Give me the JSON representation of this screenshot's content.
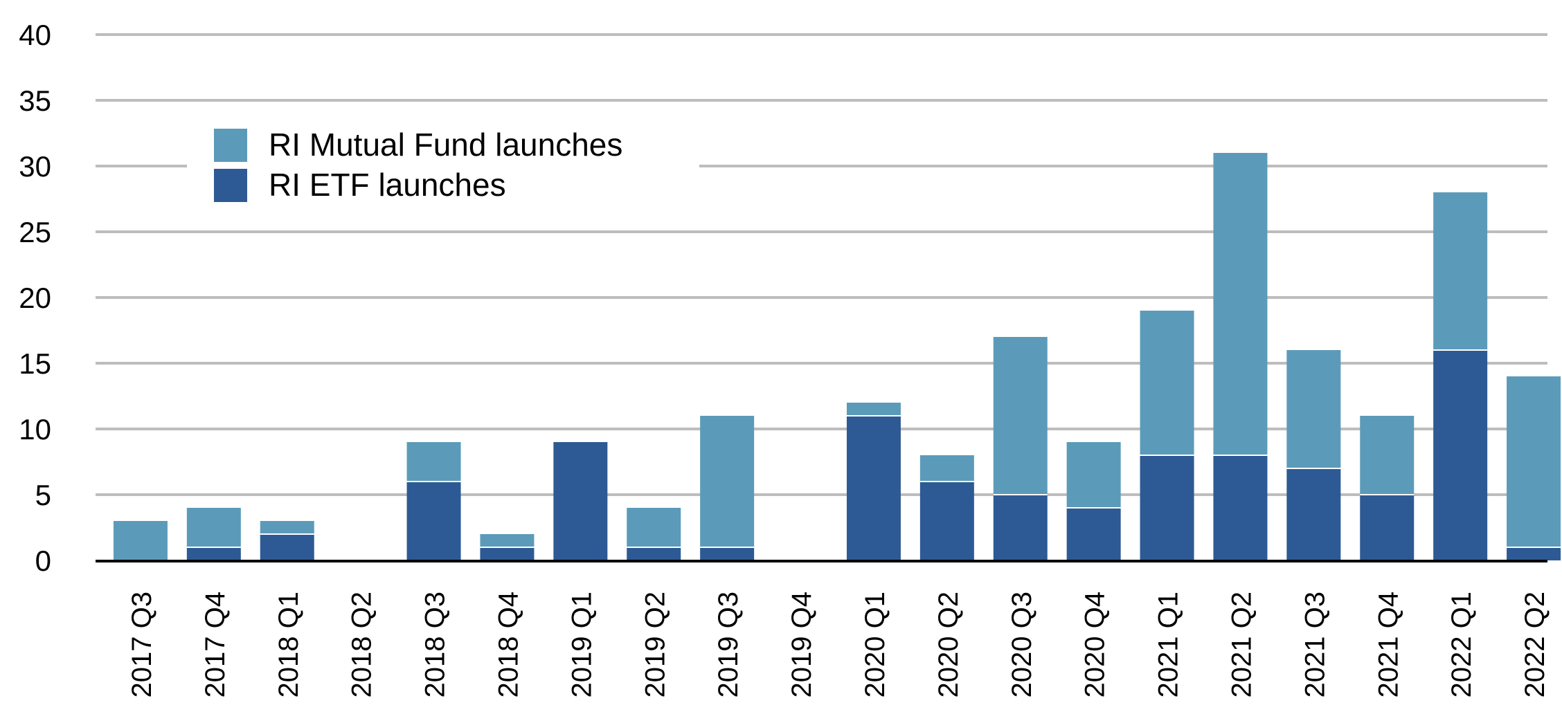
{
  "chart_data": {
    "type": "bar",
    "stacked": true,
    "categories": [
      "2017 Q3",
      "2017 Q4",
      "2018 Q1",
      "2018 Q2",
      "2018 Q3",
      "2018 Q4",
      "2019 Q1",
      "2019 Q2",
      "2019 Q3",
      "2019 Q4",
      "2020 Q1",
      "2020 Q2",
      "2020 Q3",
      "2020 Q4",
      "2021 Q1",
      "2021 Q2",
      "2021 Q3",
      "2021 Q4",
      "2022 Q1",
      "2022 Q2"
    ],
    "series": [
      {
        "name": "RI ETF launches",
        "color": "#2d5a94",
        "values": [
          0,
          1,
          2,
          0,
          6,
          1,
          9,
          1,
          1,
          0,
          11,
          6,
          5,
          4,
          8,
          8,
          7,
          5,
          16,
          1
        ]
      },
      {
        "name": "RI Mutual Fund launches",
        "color": "#5b9bb9",
        "values": [
          3,
          3,
          1,
          0,
          3,
          1,
          0,
          3,
          10,
          0,
          1,
          2,
          12,
          5,
          11,
          23,
          9,
          6,
          12,
          13
        ]
      }
    ],
    "ylim": [
      0,
      40
    ],
    "yticks": [
      0,
      5,
      10,
      15,
      20,
      25,
      30,
      35,
      40
    ],
    "grid": true,
    "legend": {
      "position": "top-left",
      "entries": [
        "RI Mutual Fund launches",
        "RI ETF launches"
      ]
    },
    "colors": {
      "grid": "#bdbdbd",
      "axis": "#000000"
    }
  }
}
